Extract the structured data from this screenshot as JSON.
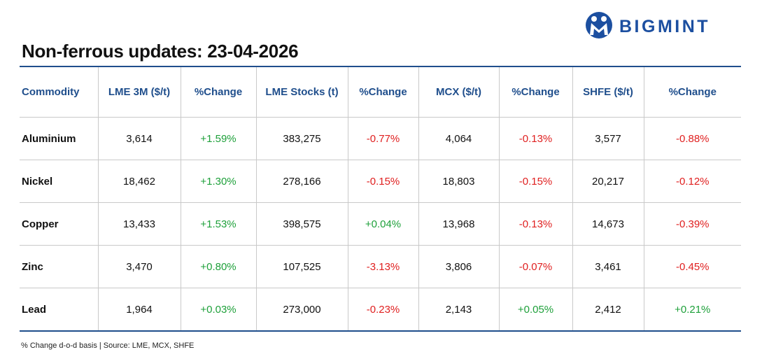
{
  "header": {
    "logo": "BIGMINT",
    "title": "Non-ferrous updates: 23-04-2026"
  },
  "table": {
    "columns": [
      "Commodity",
      "LME 3M ($/t)",
      "%Change",
      "LME Stocks (t)",
      "%Change",
      "MCX ($/t)",
      "%Change",
      "SHFE ($/t)",
      "%Change"
    ],
    "rows": [
      [
        "Aluminium",
        "3,614",
        "+1.59%",
        "383,275",
        "-0.77%",
        "4,064",
        "-0.13%",
        "3,577",
        "-0.88%"
      ],
      [
        "Nickel",
        "18,462",
        "+1.30%",
        "278,166",
        "-0.15%",
        "18,803",
        "-0.15%",
        "20,217",
        "-0.12%"
      ],
      [
        "Copper",
        "13,433",
        "+1.53%",
        "398,575",
        "+0.04%",
        "13,968",
        "-0.13%",
        "14,673",
        "-0.39%"
      ],
      [
        "Zinc",
        "3,470",
        "+0.80%",
        "107,525",
        "-3.13%",
        "3,806",
        "-0.07%",
        "3,461",
        "-0.45%"
      ],
      [
        "Lead",
        "1,964",
        "+0.03%",
        "273,000",
        "-0.23%",
        "2,143",
        "+0.05%",
        "2,412",
        "+0.21%"
      ]
    ]
  },
  "footer": {
    "note": "% Change d-o-d basis | Source: LME, MCX, SHFE"
  }
}
